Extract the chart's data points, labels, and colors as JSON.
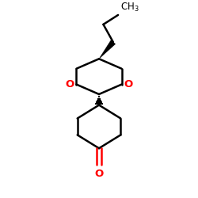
{
  "background_color": "#ffffff",
  "line_color": "#000000",
  "oxygen_color": "#ff0000",
  "lw": 1.8,
  "figsize": [
    2.5,
    2.5
  ],
  "dpi": 100,
  "ch3_label": "CH$_3$",
  "o_label": "O",
  "xlim": [
    0.15,
    0.85
  ],
  "ylim": [
    0.02,
    0.98
  ]
}
